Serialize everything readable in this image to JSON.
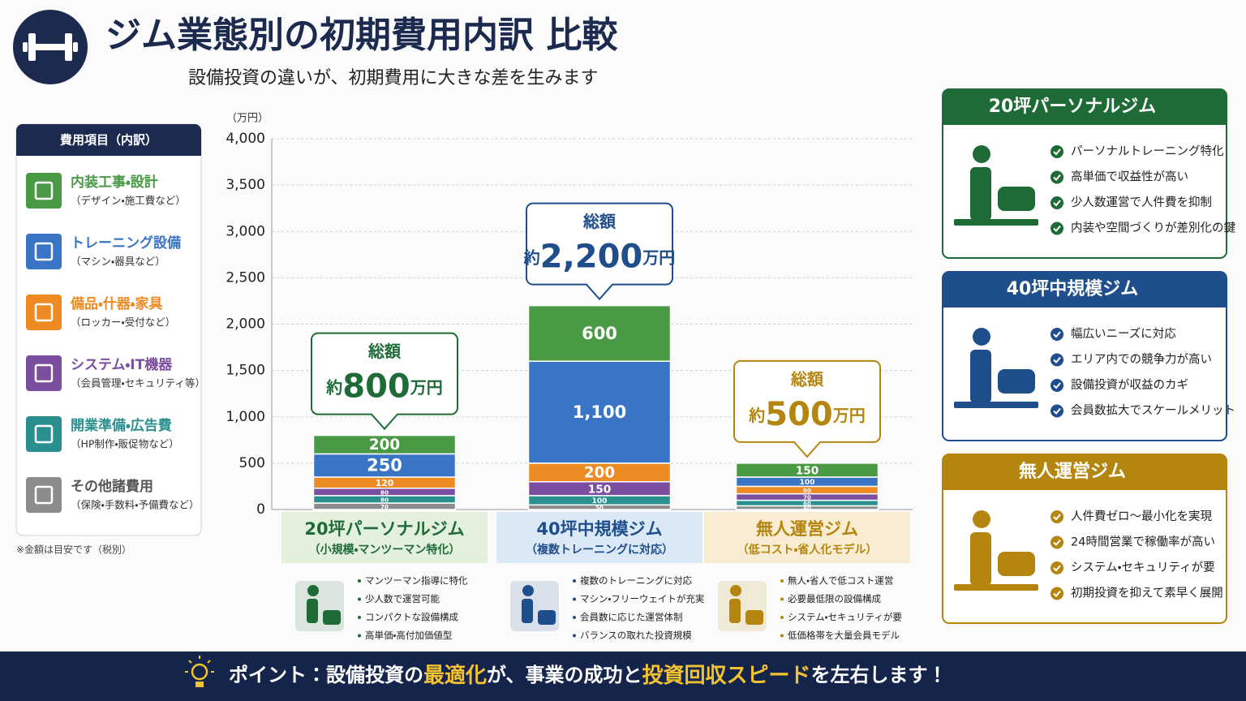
{
  "header": {
    "title": "ジム業態別の初期費用内訳 比較",
    "subtitle": "設備投資の違いが、初期費用に大きな差を生みます"
  },
  "chart_data": {
    "type": "bar",
    "stacked": true,
    "y_unit_label": "（万円）",
    "legend_title": "費用項目（内訳）",
    "categories": [
      "20坪パーソナルジム",
      "40坪中規模ジム",
      "無人運営ジム"
    ],
    "category_subtitles": [
      "（小規模・マンツーマン特化）",
      "（複数トレーニングに対応）",
      "（低コスト・省人化モデル）"
    ],
    "category_colors": [
      "#1e6b37",
      "#1f4e8c",
      "#b5860f"
    ],
    "category_backgrounds": [
      "#e3f0dc",
      "#dbe8f6",
      "#f8ecd2"
    ],
    "series": [
      {
        "name": "内装工事・設計",
        "note": "（デザイン・施工費など）",
        "color": "#4a9a45",
        "values": [
          200,
          600,
          150
        ]
      },
      {
        "name": "トレーニング設備",
        "note": "（マシン・器具など）",
        "color": "#3a74c4",
        "values": [
          250,
          1100,
          100
        ],
        "value_labels": [
          "250",
          "1,100",
          "100"
        ]
      },
      {
        "name": "備品・什器・家具",
        "note": "（ロッカー・受付など）",
        "color": "#ee8a22",
        "values": [
          120,
          200,
          80
        ]
      },
      {
        "name": "システム・IT機器",
        "note": "（会員管理・セキュリティ等）",
        "color": "#7b4ea0",
        "values": [
          80,
          150,
          70
        ]
      },
      {
        "name": "開業準備・広告費",
        "note": "（HP制作・販促物など）",
        "color": "#2a8f8f",
        "values": [
          80,
          100,
          60
        ]
      },
      {
        "name": "その他諸費用",
        "note": "（保険・手数料・予備費など）",
        "color": "#8c8c8c",
        "values": [
          70,
          50,
          40
        ]
      }
    ],
    "totals": {
      "heading": "総額",
      "prefix": "約",
      "unit": "万円",
      "values": [
        800,
        2200,
        500
      ],
      "value_labels": [
        "800",
        "2,200",
        "500"
      ]
    },
    "ylim": [
      0,
      4000
    ],
    "yticks": [
      0,
      500,
      {
        "value": 1000,
        "label": "1,000"
      },
      {
        "value": 1500,
        "label": "1,500"
      },
      {
        "value": 2000,
        "label": "2,000"
      },
      {
        "value": 2500,
        "label": "2,500"
      },
      {
        "value": 3000,
        "label": "3,000"
      },
      {
        "value": 3500,
        "label": "3,500"
      },
      {
        "value": 4000,
        "label": "4,000"
      }
    ],
    "grid": true
  },
  "footnote": "※金額は目安です（税別）",
  "category_details": [
    [
      "マンツーマン指導に特化",
      "少人数で運営可能",
      "コンパクトな設備構成",
      "高単価・高付加価値型"
    ],
    [
      "複数のトレーニングに対応",
      "マシン・フリーウェイトが充実",
      "会員数に応じた運営体制",
      "バランスの取れた投資規模"
    ],
    [
      "無人・省人で低コスト運営",
      "必要最低限の設備構成",
      "システム・セキュリティが要",
      "低価格帯を大量会員モデル"
    ]
  ],
  "panels": [
    {
      "title": "20坪パーソナルジム",
      "color": "#1e6b37",
      "items": [
        "パーソナルトレーニング特化",
        "高単価で収益性が高い",
        "少人数運営で人件費を抑制",
        "内装や空間づくりが差別化の鍵"
      ]
    },
    {
      "title": "40坪中規模ジム",
      "color": "#1f4e8c",
      "items": [
        "幅広いニーズに対応",
        "エリア内での競争力が高い",
        "設備投資が収益のカギ",
        "会員数拡大でスケールメリット"
      ]
    },
    {
      "title": "無人運営ジム",
      "color": "#b5860f",
      "items": [
        "人件費ゼロ〜最小化を実現",
        "24時間営業で稼働率が高い",
        "システム・セキュリティが要",
        "初期投資を抑えて素早く展開"
      ]
    }
  ],
  "footer": {
    "label": "ポイント：",
    "segments": [
      {
        "text": "設備投資の",
        "highlight": false
      },
      {
        "text": "最適化",
        "highlight": true
      },
      {
        "text": "が、事業の成功と",
        "highlight": false
      },
      {
        "text": "投資回収スピード",
        "highlight": true
      },
      {
        "text": "を左右します！",
        "highlight": false
      }
    ]
  }
}
